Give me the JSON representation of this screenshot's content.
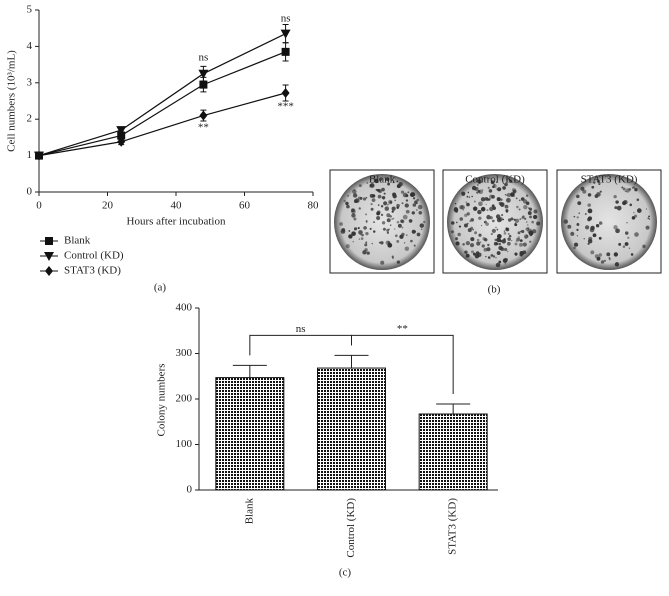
{
  "chart_data": [
    {
      "type": "line",
      "panel_label": "(a)",
      "x_label": "Hours after incubation",
      "y_label": "Cell numbers (10³/mL)",
      "x": [
        0,
        24,
        48,
        72
      ],
      "xlim": [
        0,
        80
      ],
      "xticks": [
        0,
        20,
        40,
        60,
        80
      ],
      "ylim": [
        0,
        5
      ],
      "yticks": [
        0,
        1,
        2,
        3,
        4,
        5
      ],
      "legend": "below",
      "series": [
        {
          "name": "Blank",
          "marker": "square",
          "color": "#111111",
          "values": [
            1,
            1.55,
            2.95,
            3.85
          ],
          "errors": [
            0.05,
            0.1,
            0.2,
            0.25
          ]
        },
        {
          "name": "Control (KD)",
          "marker": "triangle-down",
          "color": "#111111",
          "values": [
            1,
            1.7,
            3.25,
            4.35
          ],
          "errors": [
            0.05,
            0.08,
            0.2,
            0.25
          ]
        },
        {
          "name": "STAT3 (KD)",
          "marker": "diamond",
          "color": "#111111",
          "values": [
            1,
            1.38,
            2.1,
            2.72
          ],
          "errors": [
            0.05,
            0.08,
            0.15,
            0.22
          ]
        }
      ],
      "annotations": [
        {
          "text": "ns",
          "x": 48,
          "y": 3.68
        },
        {
          "text": "**",
          "x": 48,
          "y": 1.76
        },
        {
          "text": "ns",
          "x": 72,
          "y": 4.75
        },
        {
          "text": "***",
          "x": 72,
          "y": 2.33
        }
      ]
    },
    {
      "type": "image",
      "panel_label": "(b)",
      "labels": [
        "Blank",
        "Control (KD)",
        "STAT3 (KD)"
      ]
    },
    {
      "type": "bar",
      "panel_label": "(c)",
      "y_label": "Colony numbers",
      "categories": [
        "Blank",
        "Control (KD)",
        "STAT3 (KD)"
      ],
      "values": [
        247,
        268,
        167
      ],
      "errors": [
        27,
        28,
        22
      ],
      "color": "#111111",
      "ylim": [
        0,
        400
      ],
      "yticks": [
        0,
        100,
        200,
        300,
        400
      ],
      "brackets": [
        {
          "text": "ns",
          "from": 0,
          "to": 1
        },
        {
          "text": "**",
          "from": 1,
          "to": 2
        }
      ]
    }
  ]
}
